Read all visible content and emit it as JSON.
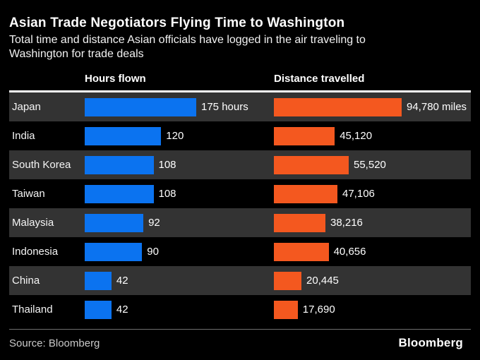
{
  "header": {
    "title": "Asian Trade Negotiators Flying Time to Washington",
    "subtitle_lines": [
      "Total time and distance Asian officials have logged in the air traveling to",
      "Washington for trade deals"
    ]
  },
  "columns": {
    "hours": "Hours flown",
    "distance": "Distance travelled"
  },
  "chart_data": {
    "type": "bar",
    "orientation": "horizontal",
    "categories": [
      "Japan",
      "India",
      "South Korea",
      "Taiwan",
      "Malaysia",
      "Indonesia",
      "China",
      "Thailand"
    ],
    "series": [
      {
        "name": "Hours flown",
        "unit": "hours",
        "color": "#0b73f0",
        "axis_max": 175,
        "values": [
          175,
          120,
          108,
          108,
          92,
          90,
          42,
          42
        ],
        "labels": [
          "175 hours",
          "120",
          "108",
          "108",
          "92",
          "90",
          "42",
          "42"
        ]
      },
      {
        "name": "Distance travelled",
        "unit": "miles",
        "color": "#f4581f",
        "axis_max": 94780,
        "values": [
          94780,
          45120,
          55520,
          47106,
          38216,
          40656,
          20445,
          17690
        ],
        "labels": [
          "94,780 miles",
          "45,120",
          "55,520",
          "47,106",
          "38,216",
          "40,656",
          "20,445",
          "17,690"
        ]
      }
    ],
    "legend_position": "column-headers",
    "grid": false
  },
  "footer": {
    "source": "Source: Bloomberg",
    "logo": "Bloomberg"
  },
  "colors": {
    "background": "#000000",
    "row_alternate": "#333333",
    "bar_blue": "#0b73f0",
    "bar_orange": "#f4581f",
    "header_divider": "#ffffff",
    "footer_divider": "#6e6e6e",
    "text": "#ffffff",
    "source_text": "#c9c9c9"
  }
}
